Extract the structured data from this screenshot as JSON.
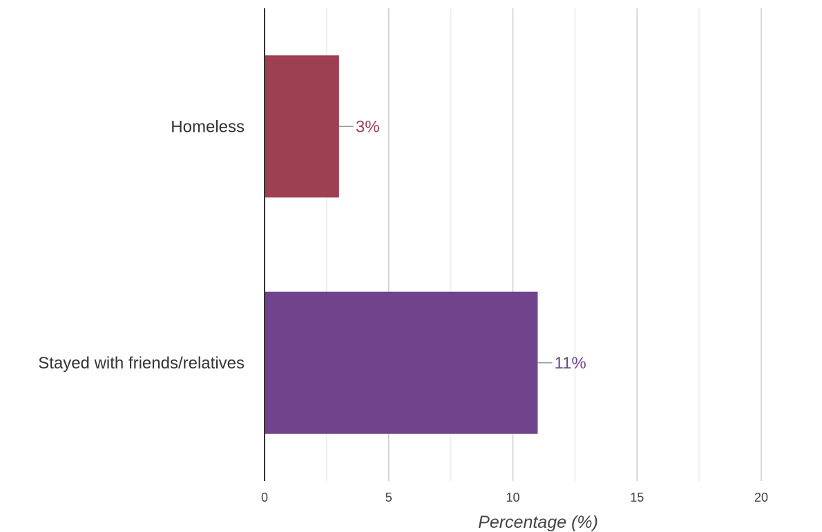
{
  "chart_data": {
    "type": "bar",
    "orientation": "horizontal",
    "categories": [
      "Homeless",
      "Stayed with friends/relatives"
    ],
    "values": [
      3,
      11
    ],
    "data_labels": [
      "3%",
      "11%"
    ],
    "colors": [
      "#9e3f52",
      "#6f448d"
    ],
    "title": "",
    "xlabel": "Percentage (%)",
    "ylabel": "",
    "xlim": [
      0,
      22.5
    ],
    "major_ticks": [
      0,
      5,
      10,
      15,
      20
    ],
    "minor_gridlines": [
      2.5,
      7.5,
      12.5,
      17.5,
      22.5
    ],
    "grid": true,
    "legend": "none"
  }
}
